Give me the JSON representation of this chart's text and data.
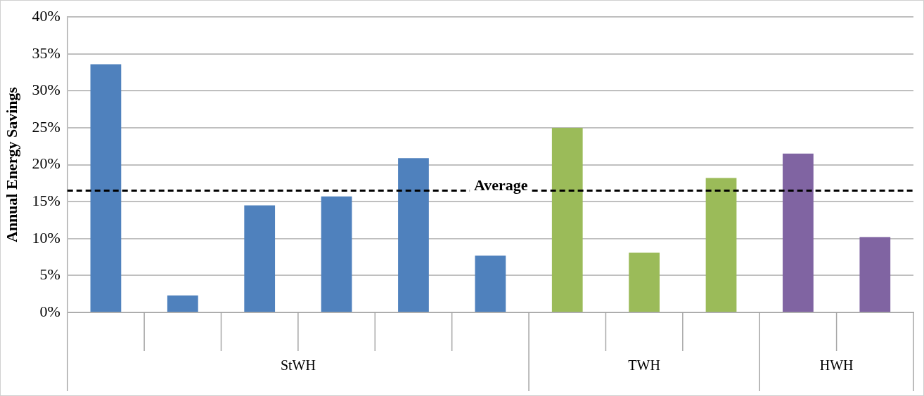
{
  "chart_data": {
    "type": "bar",
    "ylabel": "Annual Energy Savings",
    "categories": [
      null,
      null,
      null,
      null,
      null,
      null,
      null,
      null,
      null,
      null,
      null
    ],
    "values": [
      33.6,
      2.3,
      14.5,
      15.7,
      20.9,
      7.7,
      25.0,
      8.1,
      18.2,
      21.5,
      10.2
    ],
    "colors": [
      "#4f81bd",
      "#4f81bd",
      "#4f81bd",
      "#4f81bd",
      "#4f81bd",
      "#4f81bd",
      "#9bbb59",
      "#9bbb59",
      "#9bbb59",
      "#8064a2",
      "#8064a2"
    ],
    "annotations": [
      "StWH",
      "TWH",
      "HWH"
    ],
    "ylim": [
      0,
      40
    ],
    "yticks": [
      {
        "value": 0,
        "label": "0%"
      },
      {
        "value": 5,
        "label": "5%"
      },
      {
        "value": 10,
        "label": "10%"
      },
      {
        "value": 15,
        "label": "15%"
      },
      {
        "value": 20,
        "label": "20%"
      },
      {
        "value": 25,
        "label": "25%"
      },
      {
        "value": 30,
        "label": "30%"
      },
      {
        "value": 35,
        "label": "35%"
      },
      {
        "value": 40,
        "label": "40%"
      }
    ],
    "ref_lines": [
      {
        "axis": "y",
        "value": 16.5,
        "label": "Average",
        "color": "#000000",
        "line_style": "dashed"
      }
    ],
    "grid": "y",
    "legend": false
  }
}
